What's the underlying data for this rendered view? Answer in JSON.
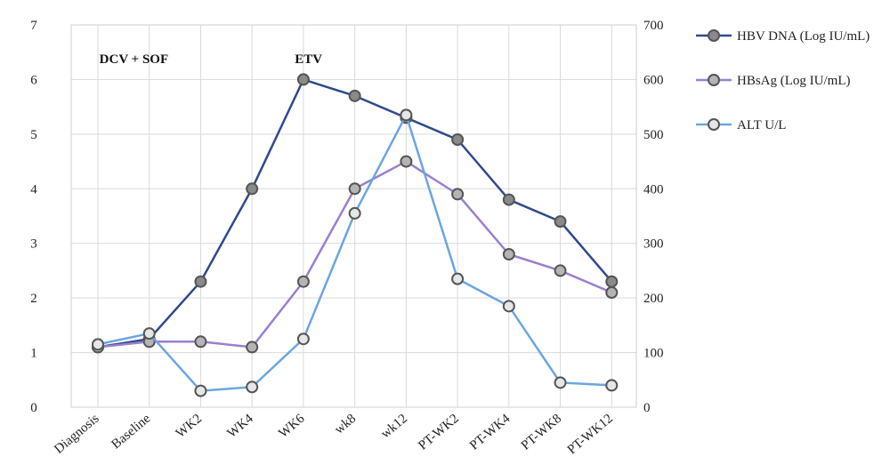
{
  "chart_data": {
    "type": "line",
    "categories": [
      "Diagnosis",
      "Baseline",
      "WK2",
      "WK4",
      "WK6",
      "wk8",
      "wk12",
      "PT-WK2",
      "PT-WK4",
      "PT-WK8",
      "PT-WK12"
    ],
    "y_left": {
      "ylim": [
        0,
        7
      ],
      "ticks": [
        0,
        1,
        2,
        3,
        4,
        5,
        6,
        7
      ]
    },
    "y_right": {
      "ylim": [
        0,
        700
      ],
      "ticks": [
        0,
        100,
        200,
        300,
        400,
        500,
        600,
        700
      ]
    },
    "series": [
      {
        "name": "HBV DNA (Log IU/mL)",
        "axis": "left",
        "color": "#2e4a8c",
        "fill": "#8a8a8a",
        "values": [
          1.1,
          1.25,
          2.3,
          4.0,
          6.0,
          5.7,
          5.3,
          4.9,
          3.8,
          3.4,
          2.3
        ]
      },
      {
        "name": "HBsAg (Log IU/mL)",
        "axis": "left",
        "color": "#9a7fd0",
        "fill": "#b4b4b4",
        "values": [
          1.1,
          1.2,
          1.2,
          1.1,
          2.3,
          4.0,
          4.5,
          3.9,
          2.8,
          2.5,
          2.1
        ]
      },
      {
        "name": "ALT U/L",
        "axis": "right",
        "color": "#6aa6e0",
        "fill": "#e6e6e6",
        "values": [
          115,
          135,
          30,
          37,
          125,
          355,
          535,
          235,
          185,
          45,
          40
        ]
      }
    ],
    "annotations": [
      {
        "text": "DCV + SOF",
        "category_index": 0.7,
        "y_left": 6.3
      },
      {
        "text": "ETV",
        "category_index": 4.1,
        "y_left": 6.3
      }
    ],
    "grid": true,
    "legend_position": "right"
  }
}
